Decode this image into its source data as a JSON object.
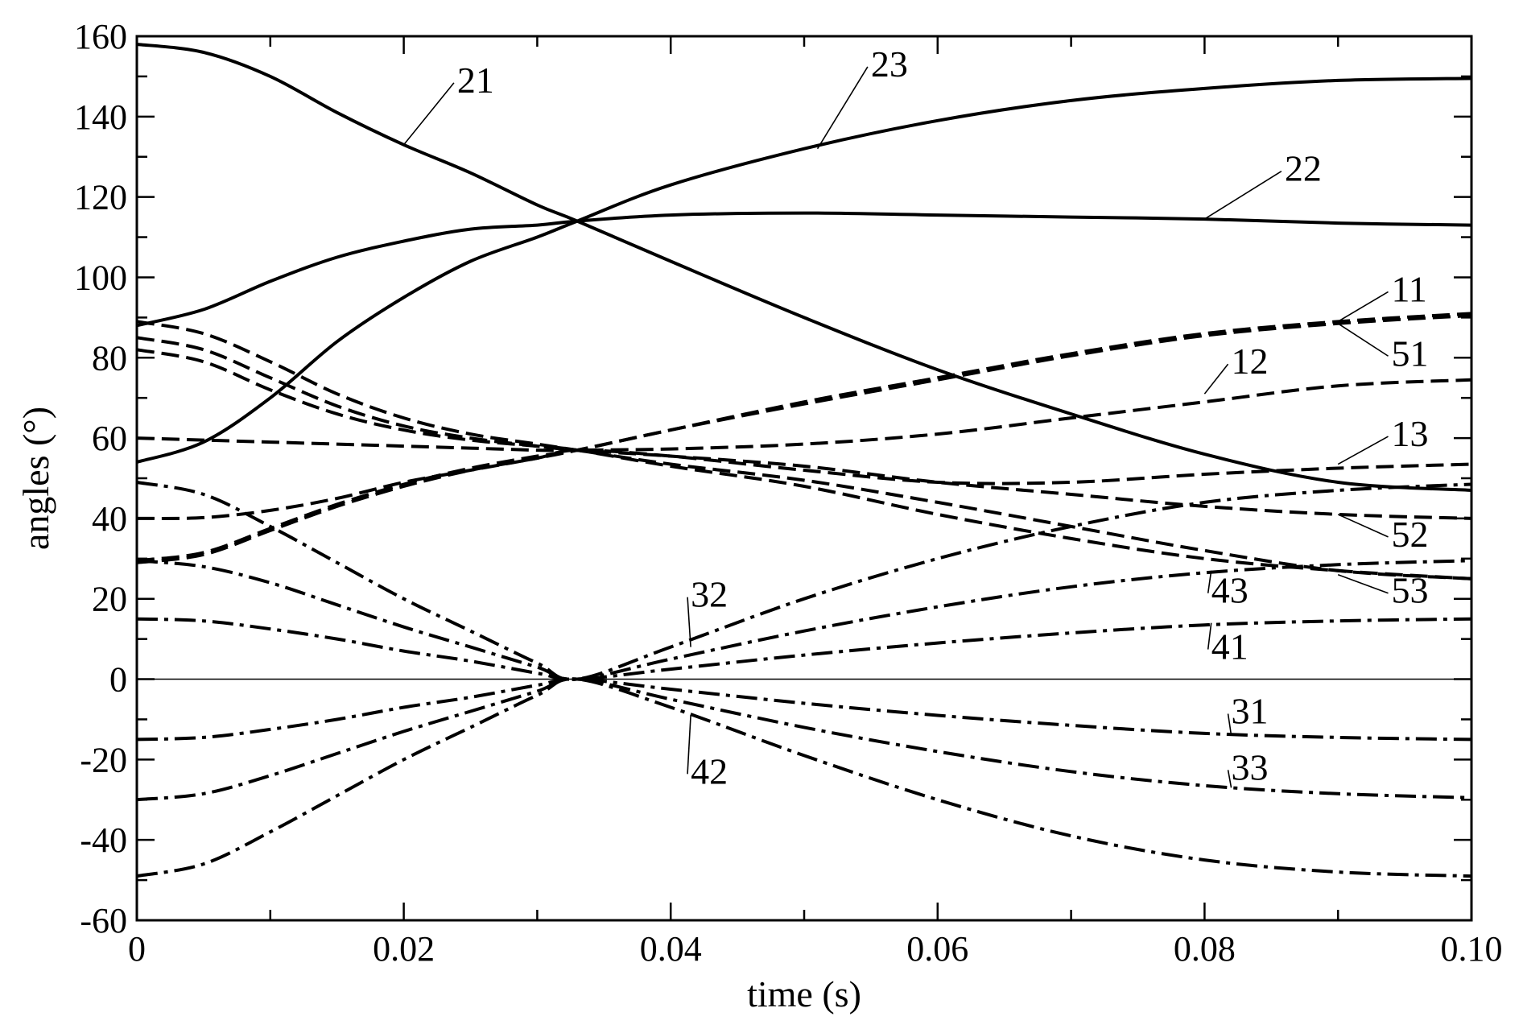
{
  "chart_data": {
    "type": "line",
    "xlabel": "time (s)",
    "ylabel": "angles (°)",
    "xlim": [
      0,
      0.1
    ],
    "ylim": [
      -60,
      160
    ],
    "xticks": [
      "0",
      "0.02",
      "0.04",
      "0.06",
      "0.08",
      "0.10"
    ],
    "yticks": [
      "160",
      "140",
      "120",
      "100",
      "80",
      "60",
      "40",
      "20",
      "0",
      "-20",
      "-40",
      "-60"
    ],
    "grid": false,
    "styles": {
      "solid": "solid",
      "dashed": "dashed",
      "dashdot": "dash-dot"
    },
    "series": [
      {
        "name": "21",
        "style": "solid",
        "x": [
          0,
          0.005,
          0.01,
          0.015,
          0.02,
          0.025,
          0.03,
          0.033,
          0.04,
          0.05,
          0.06,
          0.07,
          0.08,
          0.09,
          0.1
        ],
        "y": [
          158,
          156,
          150,
          141,
          133,
          126,
          118,
          114,
          104,
          90,
          77,
          66,
          56,
          49,
          47
        ]
      },
      {
        "name": "22",
        "style": "solid",
        "x": [
          0,
          0.005,
          0.01,
          0.015,
          0.02,
          0.025,
          0.03,
          0.033,
          0.04,
          0.05,
          0.06,
          0.07,
          0.08,
          0.09,
          0.1
        ],
        "y": [
          88,
          92,
          99,
          105,
          109,
          112,
          113,
          114,
          115.5,
          116,
          115.5,
          115,
          114.5,
          113.5,
          113
        ]
      },
      {
        "name": "23",
        "style": "solid",
        "x": [
          0,
          0.005,
          0.01,
          0.015,
          0.02,
          0.025,
          0.03,
          0.033,
          0.04,
          0.05,
          0.06,
          0.07,
          0.08,
          0.09,
          0.1
        ],
        "y": [
          54,
          59,
          70,
          84,
          95,
          104,
          110,
          114,
          123,
          132,
          139,
          144,
          147,
          149,
          149.5
        ]
      },
      {
        "name": "11",
        "style": "dashed",
        "x": [
          0,
          0.005,
          0.01,
          0.015,
          0.02,
          0.025,
          0.03,
          0.033,
          0.04,
          0.05,
          0.06,
          0.07,
          0.08,
          0.09,
          0.1
        ],
        "y": [
          29,
          31,
          37,
          43,
          48,
          52,
          55,
          57,
          62,
          69,
          75,
          81,
          86,
          89,
          91
        ]
      },
      {
        "name": "51",
        "style": "dashed",
        "x": [
          0,
          0.005,
          0.01,
          0.015,
          0.02,
          0.025,
          0.03,
          0.033,
          0.04,
          0.05,
          0.06,
          0.07,
          0.08,
          0.09,
          0.1
        ],
        "y": [
          29.5,
          31.5,
          37.5,
          43.5,
          48.5,
          52.5,
          55.5,
          57,
          62,
          68.5,
          74.5,
          80.5,
          85.5,
          88.5,
          90.5
        ]
      },
      {
        "name": "12",
        "style": "dashed",
        "x": [
          0,
          0.005,
          0.01,
          0.015,
          0.02,
          0.025,
          0.03,
          0.033,
          0.04,
          0.05,
          0.06,
          0.07,
          0.08,
          0.09,
          0.1
        ],
        "y": [
          60,
          59.5,
          59,
          58.5,
          58,
          57.5,
          57,
          57,
          57.3,
          58.5,
          61,
          65,
          69,
          73,
          74.5
        ]
      },
      {
        "name": "13",
        "style": "dashed",
        "x": [
          0,
          0.005,
          0.01,
          0.015,
          0.02,
          0.025,
          0.03,
          0.033,
          0.04,
          0.05,
          0.06,
          0.07,
          0.08,
          0.09,
          0.1
        ],
        "y": [
          40,
          40.2,
          42,
          45,
          49,
          52,
          55,
          57,
          55.5,
          52,
          49,
          49,
          51,
          52.5,
          53.5
        ]
      },
      {
        "name": "52",
        "style": "dashed",
        "x": [
          0,
          0.005,
          0.01,
          0.015,
          0.02,
          0.025,
          0.03,
          0.033,
          0.04,
          0.05,
          0.06,
          0.07,
          0.08,
          0.09,
          0.1
        ],
        "y": [
          85,
          82,
          75,
          68,
          63,
          60,
          58,
          57,
          55.5,
          53,
          49,
          46,
          43,
          41,
          40
        ]
      },
      {
        "name": "53",
        "style": "dashed",
        "x": [
          0,
          0.005,
          0.01,
          0.015,
          0.02,
          0.025,
          0.03,
          0.033,
          0.04,
          0.05,
          0.06,
          0.07,
          0.08,
          0.09,
          0.1
        ],
        "y": [
          82,
          79,
          72,
          66,
          62,
          59.5,
          58,
          57,
          53,
          48,
          41,
          35,
          30,
          27,
          25
        ]
      },
      {
        "name": "",
        "style": "dashed",
        "x": [
          0,
          0.005,
          0.01,
          0.015,
          0.02,
          0.025,
          0.03,
          0.033,
          0.04,
          0.05,
          0.06,
          0.07,
          0.08,
          0.09,
          0.1
        ],
        "y": [
          89,
          86,
          79,
          71,
          65,
          61,
          58.5,
          57,
          53.5,
          49.5,
          44,
          38,
          32,
          27,
          25
        ]
      },
      {
        "name": "31",
        "style": "dashdot",
        "x": [
          0,
          0.005,
          0.01,
          0.015,
          0.02,
          0.025,
          0.03,
          0.033,
          0.04,
          0.05,
          0.06,
          0.07,
          0.08,
          0.09,
          0.1
        ],
        "y": [
          -15,
          -14.5,
          -12.5,
          -10,
          -7,
          -4.5,
          -1.5,
          0,
          -2.5,
          -6,
          -9,
          -11.5,
          -13.5,
          -14.5,
          -15
        ]
      },
      {
        "name": "33",
        "style": "dashdot",
        "x": [
          0,
          0.005,
          0.01,
          0.015,
          0.02,
          0.025,
          0.03,
          0.033,
          0.04,
          0.05,
          0.06,
          0.07,
          0.08,
          0.09,
          0.1
        ],
        "y": [
          -30,
          -28.5,
          -24,
          -18.5,
          -13,
          -8,
          -3,
          0,
          -5,
          -12,
          -18,
          -23,
          -26.5,
          -28.5,
          -29.5
        ]
      },
      {
        "name": "42",
        "style": "dashdot",
        "x": [
          0,
          0.005,
          0.01,
          0.015,
          0.02,
          0.025,
          0.03,
          0.033,
          0.04,
          0.05,
          0.06,
          0.07,
          0.08,
          0.09,
          0.1
        ],
        "y": [
          -49,
          -46,
          -38,
          -29,
          -20,
          -12,
          -4,
          0,
          -7,
          -19,
          -30,
          -39,
          -45,
          -48,
          -49
        ]
      },
      {
        "name": "32",
        "style": "dashdot",
        "x": [
          0,
          0.005,
          0.01,
          0.015,
          0.02,
          0.025,
          0.03,
          0.033,
          0.04,
          0.05,
          0.06,
          0.07,
          0.08,
          0.09,
          0.1
        ],
        "y": [
          49,
          46,
          38,
          29,
          20,
          12,
          4,
          0,
          8,
          20,
          30,
          38,
          44,
          47,
          48.5
        ]
      },
      {
        "name": "43",
        "style": "dashdot",
        "x": [
          0,
          0.005,
          0.01,
          0.015,
          0.02,
          0.025,
          0.03,
          0.033,
          0.04,
          0.05,
          0.06,
          0.07,
          0.08,
          0.09,
          0.1
        ],
        "y": [
          29.5,
          28,
          24,
          18.5,
          13,
          8,
          3,
          0,
          5,
          12,
          18,
          23,
          26.5,
          28.5,
          29.5
        ]
      },
      {
        "name": "41",
        "style": "dashdot",
        "x": [
          0,
          0.005,
          0.01,
          0.015,
          0.02,
          0.025,
          0.03,
          0.033,
          0.04,
          0.05,
          0.06,
          0.07,
          0.08,
          0.09,
          0.1
        ],
        "y": [
          15,
          14.5,
          12.5,
          10,
          7,
          4.5,
          1.5,
          0,
          2.5,
          6,
          9,
          11.5,
          13.5,
          14.5,
          15
        ]
      }
    ],
    "annotations": [
      {
        "text": "21",
        "at": [
          0.024,
          146
        ],
        "tip": [
          0.02,
          133
        ]
      },
      {
        "text": "23",
        "at": [
          0.055,
          150
        ],
        "tip": [
          0.051,
          132
        ]
      },
      {
        "text": "22",
        "at": [
          0.086,
          124
        ],
        "tip": [
          0.08,
          114.5
        ]
      },
      {
        "text": "11",
        "at": [
          0.094,
          94
        ],
        "tip": [
          0.09,
          89
        ]
      },
      {
        "text": "51",
        "at": [
          0.094,
          78
        ],
        "tip": [
          0.09,
          88.5
        ]
      },
      {
        "text": "12",
        "at": [
          0.082,
          76
        ],
        "tip": [
          0.08,
          71
        ]
      },
      {
        "text": "13",
        "at": [
          0.094,
          58
        ],
        "tip": [
          0.09,
          53.5
        ]
      },
      {
        "text": "52",
        "at": [
          0.094,
          33
        ],
        "tip": [
          0.09,
          41
        ]
      },
      {
        "text": "53",
        "at": [
          0.094,
          19
        ],
        "tip": [
          0.09,
          26
        ]
      },
      {
        "text": "43",
        "at": [
          0.0805,
          19
        ],
        "tip": [
          0.0805,
          27
        ]
      },
      {
        "text": "41",
        "at": [
          0.0805,
          5
        ],
        "tip": [
          0.0805,
          14
        ]
      },
      {
        "text": "32",
        "at": [
          0.0415,
          18
        ],
        "tip": [
          0.0415,
          8
        ]
      },
      {
        "text": "42",
        "at": [
          0.0415,
          -26
        ],
        "tip": [
          0.0415,
          -9
        ]
      },
      {
        "text": "31",
        "at": [
          0.082,
          -11
        ],
        "tip": [
          0.082,
          -14
        ]
      },
      {
        "text": "33",
        "at": [
          0.082,
          -25
        ],
        "tip": [
          0.082,
          -27
        ]
      }
    ]
  }
}
